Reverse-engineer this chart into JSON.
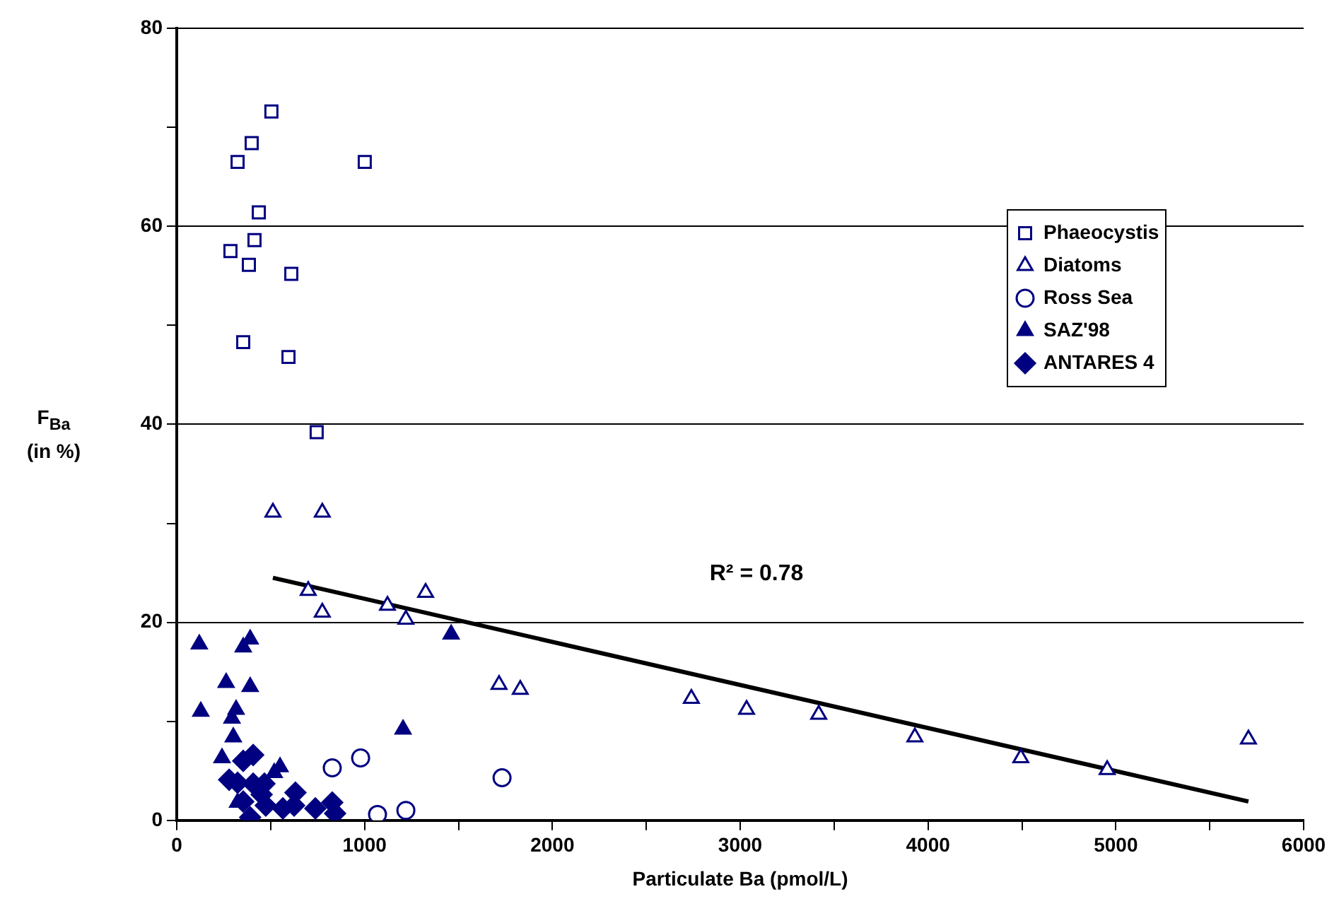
{
  "chart_data": {
    "type": "scatter",
    "xlabel": "Particulate Ba (pmol/L)",
    "ylabel": "F$_{Ba}$ (in %)",
    "xlim": [
      0,
      6000
    ],
    "xticks": [
      0,
      {
        "value": 500,
        "label": null
      },
      1000,
      {
        "value": 1500,
        "label": null
      },
      2000,
      {
        "value": 2500,
        "label": null
      },
      3000,
      {
        "value": 3500,
        "label": null
      },
      4000,
      {
        "value": 4500,
        "label": null
      },
      5000,
      {
        "value": 5500,
        "label": null
      },
      6000
    ],
    "ylim": [
      0,
      80
    ],
    "yticks": [
      0,
      {
        "value": 10,
        "label": null
      },
      20,
      {
        "value": 30,
        "label": null
      },
      40,
      {
        "value": 50,
        "label": null
      },
      60,
      {
        "value": 70,
        "label": null
      },
      80
    ],
    "grid": "y",
    "legend": "top right",
    "series": [
      {
        "name": "Phaeocystis",
        "color": "#000080",
        "marker": "square",
        "x": [
          504,
          399,
          324,
          1001,
          437,
          414,
          286,
          384,
          610,
          354,
          595,
          745
        ],
        "values": [
          71.6,
          68.4,
          66.5,
          66.5,
          61.4,
          58.6,
          57.5,
          56.1,
          55.2,
          48.3,
          46.8,
          39.2
        ]
      },
      {
        "name": "Diatoms",
        "color": "#000080",
        "marker": "triangle",
        "x": [
          512,
          775,
          700,
          775,
          1122,
          1220,
          1325,
          1716,
          1829,
          2740,
          3034,
          3418,
          3930,
          4494,
          4954,
          5706
        ],
        "values": [
          31.1,
          31.1,
          23.2,
          21.0,
          21.7,
          20.3,
          23.0,
          13.7,
          13.2,
          12.3,
          11.2,
          10.7,
          8.4,
          6.3,
          5.1,
          8.2
        ]
      },
      {
        "name": "Ross Sea",
        "color": "#000080",
        "marker": "circle",
        "x": [
          828,
          979,
          1069,
          1220,
          1732
        ],
        "values": [
          5.3,
          6.3,
          0.6,
          1.0,
          4.3
        ]
      },
      {
        "name": "SAZ'98",
        "color": "#000080",
        "marker": "triangle",
        "x": [
          120,
          354,
          391,
          263,
          391,
          128,
          316,
          294,
          301,
          241,
          550,
          1205,
          1461,
          324,
          519
        ],
        "values": [
          17.8,
          17.5,
          18.3,
          13.9,
          13.5,
          11.0,
          11.2,
          10.3,
          8.4,
          6.3,
          5.4,
          9.2,
          18.8,
          1.8,
          4.8
        ]
      },
      {
        "name": "ANTARES 4",
        "color": "#000080",
        "marker": "diamond",
        "x": [
          407,
          354,
          279,
          324,
          407,
          467,
          632,
          452,
          474,
          565,
          625,
          391,
          738,
          828,
          843,
          354
        ],
        "values": [
          6.6,
          6.0,
          4.1,
          3.8,
          3.7,
          3.7,
          2.8,
          2.6,
          1.5,
          1.2,
          1.5,
          0.3,
          1.2,
          1.8,
          0.7,
          1.9
        ]
      },
      {
        "type": "line",
        "color": "#000000",
        "marker": "none",
        "x": [
          512,
          5706
        ],
        "values": [
          24.5,
          1.9
        ]
      }
    ],
    "annotations": [
      "R² = 0.78"
    ]
  }
}
